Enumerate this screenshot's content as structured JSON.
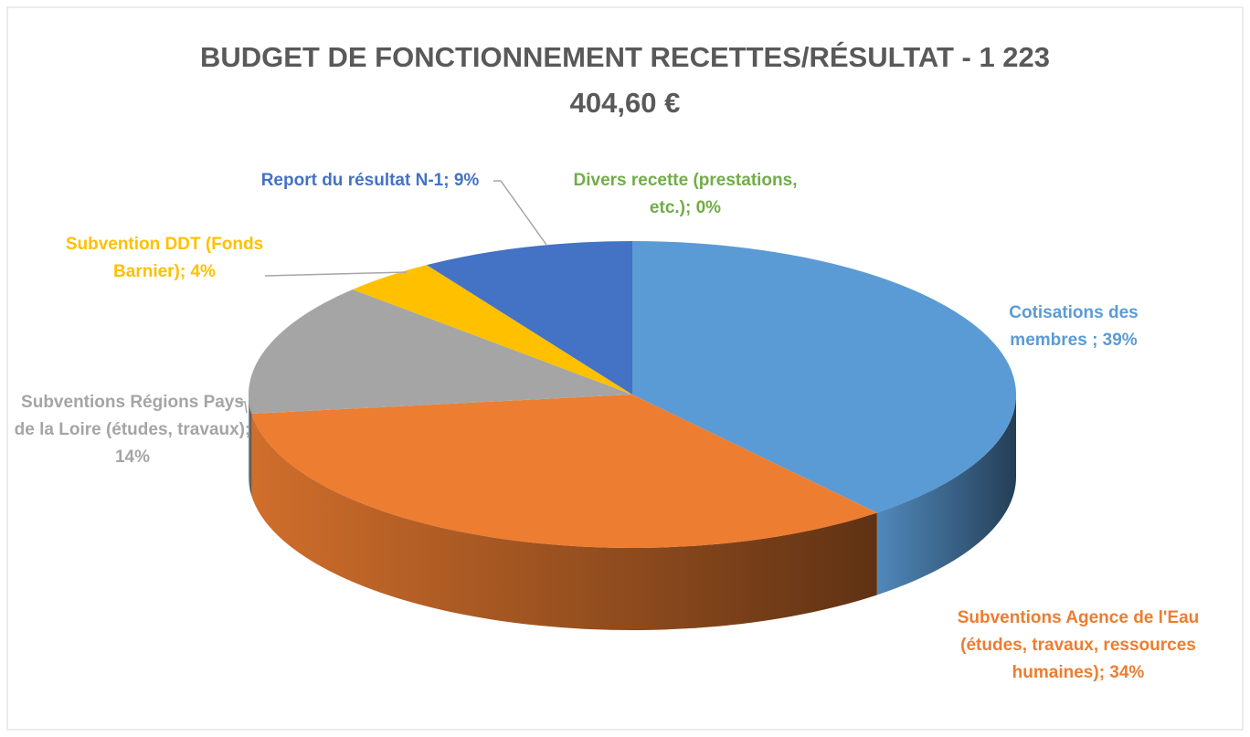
{
  "chart_data": {
    "type": "pie",
    "title": "BUDGET DE FONCTIONNEMENT RECETTES/RÉSULTAT - 1 223 404,60 €",
    "values": [
      39,
      34,
      14,
      4,
      9,
      0
    ],
    "value_labels": [
      "Cotisations des membres ; 39%",
      "Subventions Agence de l'Eau (études, travaux, ressources humaines); 34%",
      "Subventions Régions Pays de la Loire (études, travaux); 14%",
      "Subvention DDT (Fonds Barnier); 4%",
      "Report du résultat N-1; 9%",
      "Divers recette (prestations, etc.); 0%"
    ],
    "colors": [
      "#5b9bd5",
      "#ed7d31",
      "#a5a5a5",
      "#ffc000",
      "#4472c4",
      "#70ad47"
    ]
  }
}
